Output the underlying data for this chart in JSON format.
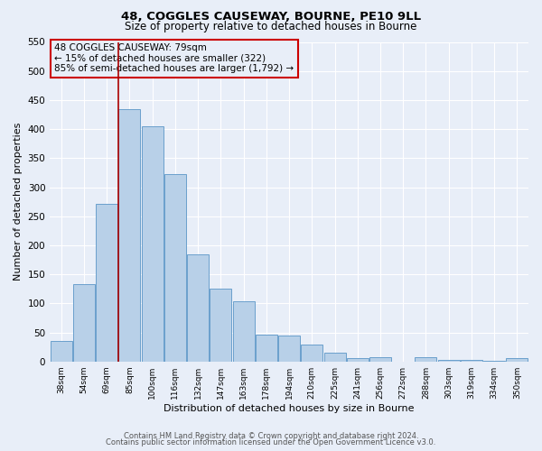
{
  "title1": "48, COGGLES CAUSEWAY, BOURNE, PE10 9LL",
  "title2": "Size of property relative to detached houses in Bourne",
  "xlabel": "Distribution of detached houses by size in Bourne",
  "ylabel": "Number of detached properties",
  "bar_labels": [
    "38sqm",
    "54sqm",
    "69sqm",
    "85sqm",
    "100sqm",
    "116sqm",
    "132sqm",
    "147sqm",
    "163sqm",
    "178sqm",
    "194sqm",
    "210sqm",
    "225sqm",
    "241sqm",
    "256sqm",
    "272sqm",
    "288sqm",
    "303sqm",
    "319sqm",
    "334sqm",
    "350sqm"
  ],
  "bar_values": [
    35,
    133,
    271,
    435,
    405,
    322,
    184,
    125,
    104,
    46,
    45,
    29,
    15,
    6,
    8,
    0,
    8,
    2,
    2,
    1,
    5
  ],
  "bar_color": "#b8d0e8",
  "bar_edge_color": "#6aa0cc",
  "vline_color": "#aa0000",
  "annotation_text": "48 COGGLES CAUSEWAY: 79sqm\n← 15% of detached houses are smaller (322)\n85% of semi-detached houses are larger (1,792) →",
  "annotation_box_edge": "#cc0000",
  "ylim": [
    0,
    550
  ],
  "yticks": [
    0,
    50,
    100,
    150,
    200,
    250,
    300,
    350,
    400,
    450,
    500,
    550
  ],
  "footer1": "Contains HM Land Registry data © Crown copyright and database right 2024.",
  "footer2": "Contains public sector information licensed under the Open Government Licence v3.0.",
  "bg_color": "#e8eef8",
  "grid_color": "#ffffff"
}
